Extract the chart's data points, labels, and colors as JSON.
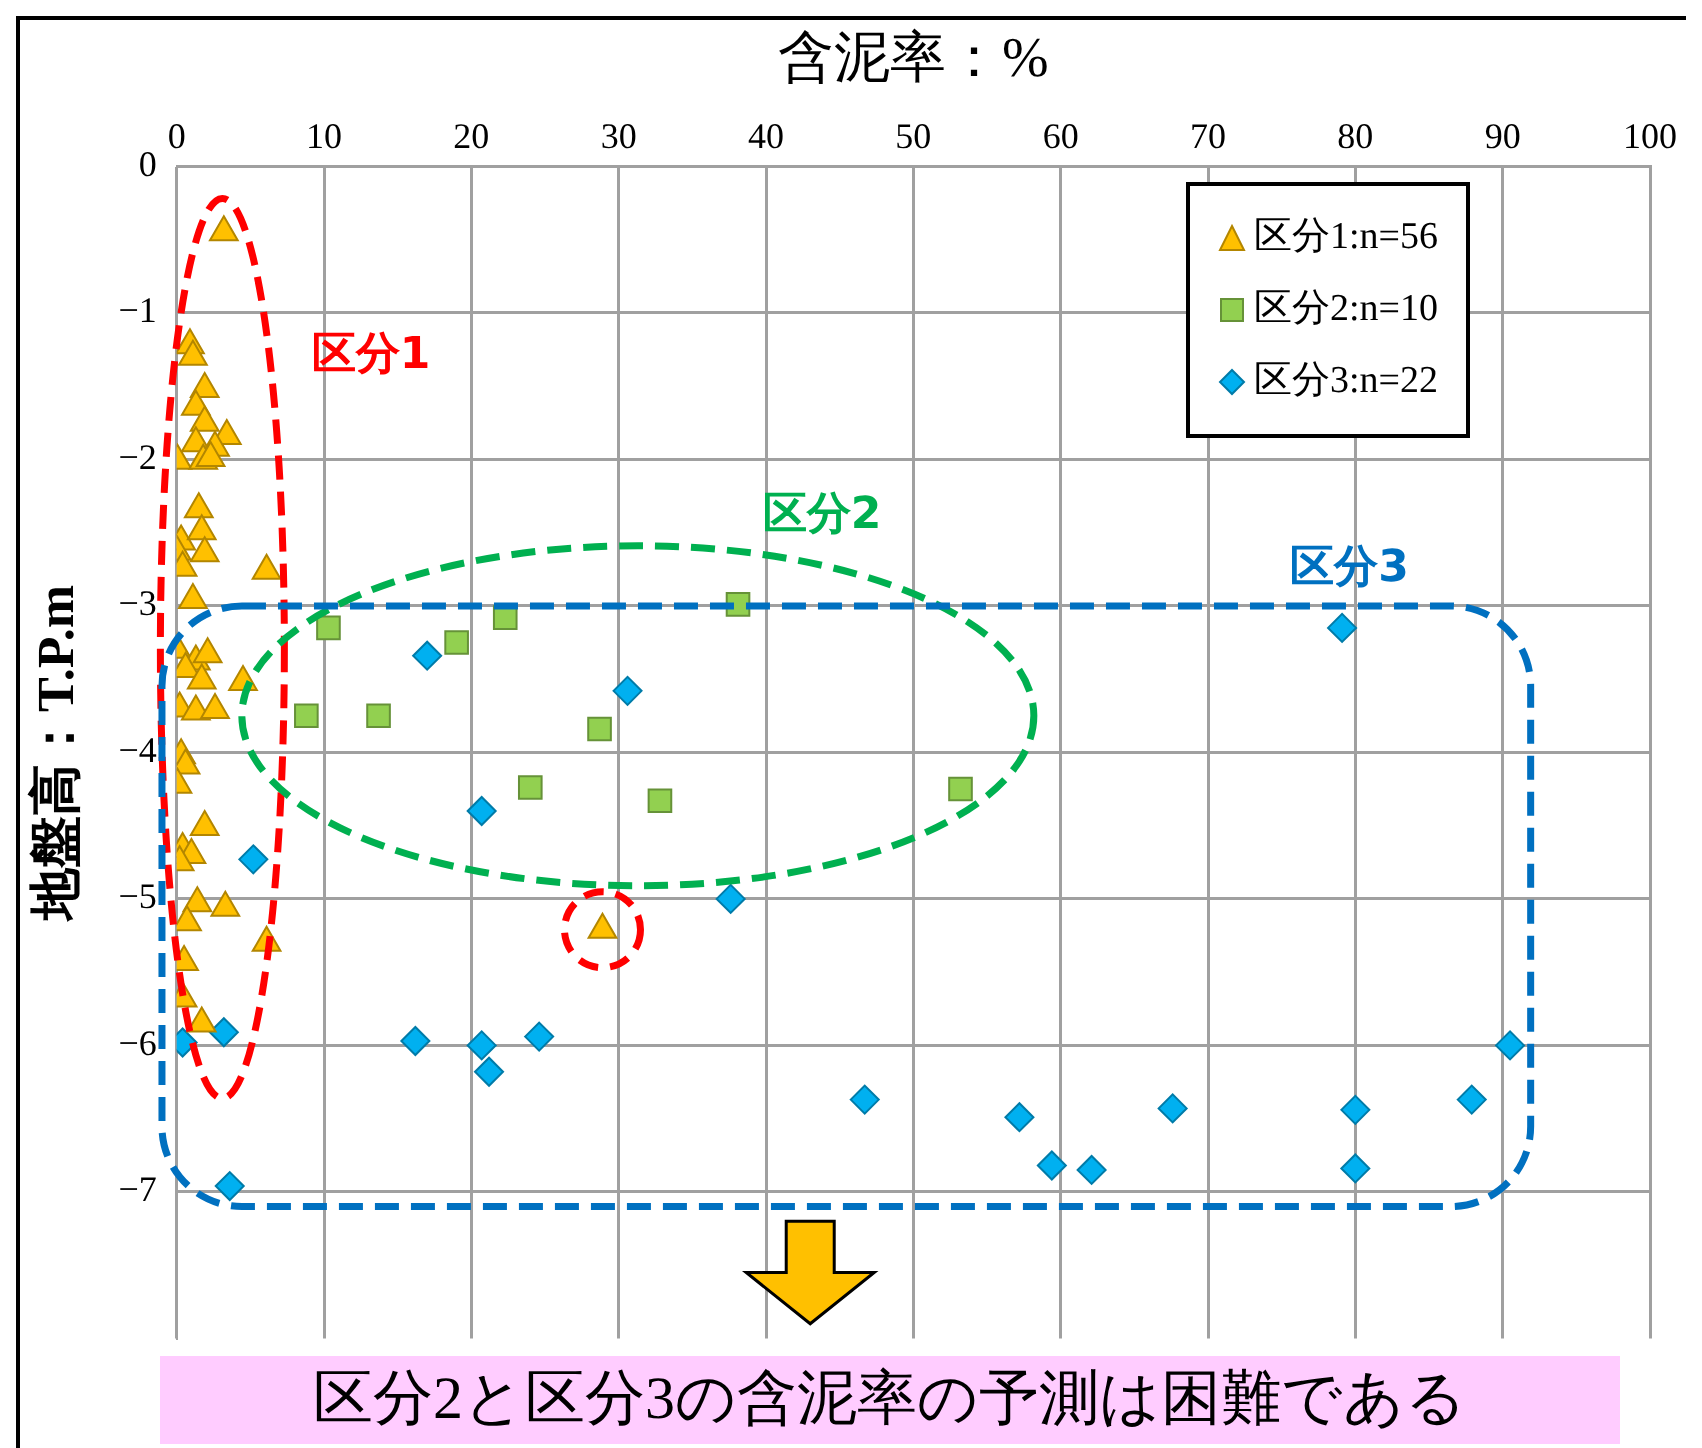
{
  "chart_data": {
    "type": "scatter",
    "xlabel": "含泥率：%",
    "ylabel": "地盤高：T.P.m",
    "xlim": [
      0,
      100
    ],
    "xticks": [
      0,
      10,
      20,
      30,
      40,
      50,
      60,
      70,
      80,
      90,
      100
    ],
    "ylim": [
      -8,
      0
    ],
    "yticks": [
      0,
      -1,
      -2,
      -3,
      -4,
      -5,
      -6,
      -7
    ],
    "grid": true,
    "legend": "top right",
    "series": [
      {
        "name": "区分1:n=56",
        "color": "#ffc000",
        "marker": "triangle",
        "x": [
          3.2,
          0.9,
          1.1,
          1.9,
          1.3,
          1.9,
          3.4,
          1.3,
          2.6,
          0.05,
          1.8,
          2.3,
          1.5,
          0.3,
          1.7,
          0,
          1.9,
          0.4,
          6.1,
          1.1,
          0,
          1.3,
          2.1,
          0.6,
          1.7,
          4.5,
          0.2,
          1.3,
          2.6,
          0.3,
          0.6,
          0.05,
          1.9,
          0.4,
          1.0,
          0.2,
          1.4,
          3.3,
          0.7,
          6.1,
          0.5,
          0.4,
          1.7,
          28.9
        ],
        "values": [
          -0.45,
          -1.22,
          -1.3,
          -1.52,
          -1.64,
          -1.75,
          -1.84,
          -1.89,
          -1.92,
          -2.01,
          -2.01,
          -1.99,
          -2.34,
          -2.56,
          -2.49,
          -2.63,
          -2.64,
          -2.74,
          -2.76,
          -2.96,
          -3.3,
          -3.38,
          -3.33,
          -3.43,
          -3.51,
          -3.52,
          -3.7,
          -3.72,
          -3.71,
          -4.02,
          -4.09,
          -4.22,
          -4.51,
          -4.66,
          -4.7,
          -4.75,
          -5.03,
          -5.06,
          -5.16,
          -5.3,
          -5.43,
          -5.68,
          -5.85,
          -5.21
        ]
      },
      {
        "name": "区分2:n=10",
        "color": "#92d050",
        "marker": "square",
        "x": [
          10.3,
          22.3,
          19.0,
          38.1,
          8.8,
          13.7,
          28.7,
          24.0,
          32.8,
          53.2
        ],
        "values": [
          -3.15,
          -3.08,
          -3.25,
          -2.99,
          -3.75,
          -3.75,
          -3.84,
          -4.24,
          -4.33,
          -4.25
        ]
      },
      {
        "name": "区分3:n=22",
        "color": "#00b0f0",
        "marker": "diamond",
        "x": [
          5.2,
          3.2,
          0.4,
          3.6,
          17.0,
          30.6,
          20.7,
          37.6,
          16.2,
          20.7,
          21.2,
          24.6,
          46.7,
          79.1,
          90.5,
          57.2,
          59.4,
          62.1,
          67.6,
          80.0,
          80.0,
          87.9
        ],
        "values": [
          -4.73,
          -5.91,
          -5.98,
          -6.96,
          -3.34,
          -3.58,
          -4.4,
          -5.0,
          -5.97,
          -6.0,
          -6.18,
          -5.94,
          -6.37,
          -3.15,
          -6.0,
          -6.49,
          -6.82,
          -6.85,
          -6.43,
          -6.44,
          -6.84,
          -6.37
        ]
      }
    ],
    "annotations": [
      "区分1",
      "区分2",
      "区分3",
      "区分2と区分3の含泥率の予測は困難である"
    ]
  }
}
